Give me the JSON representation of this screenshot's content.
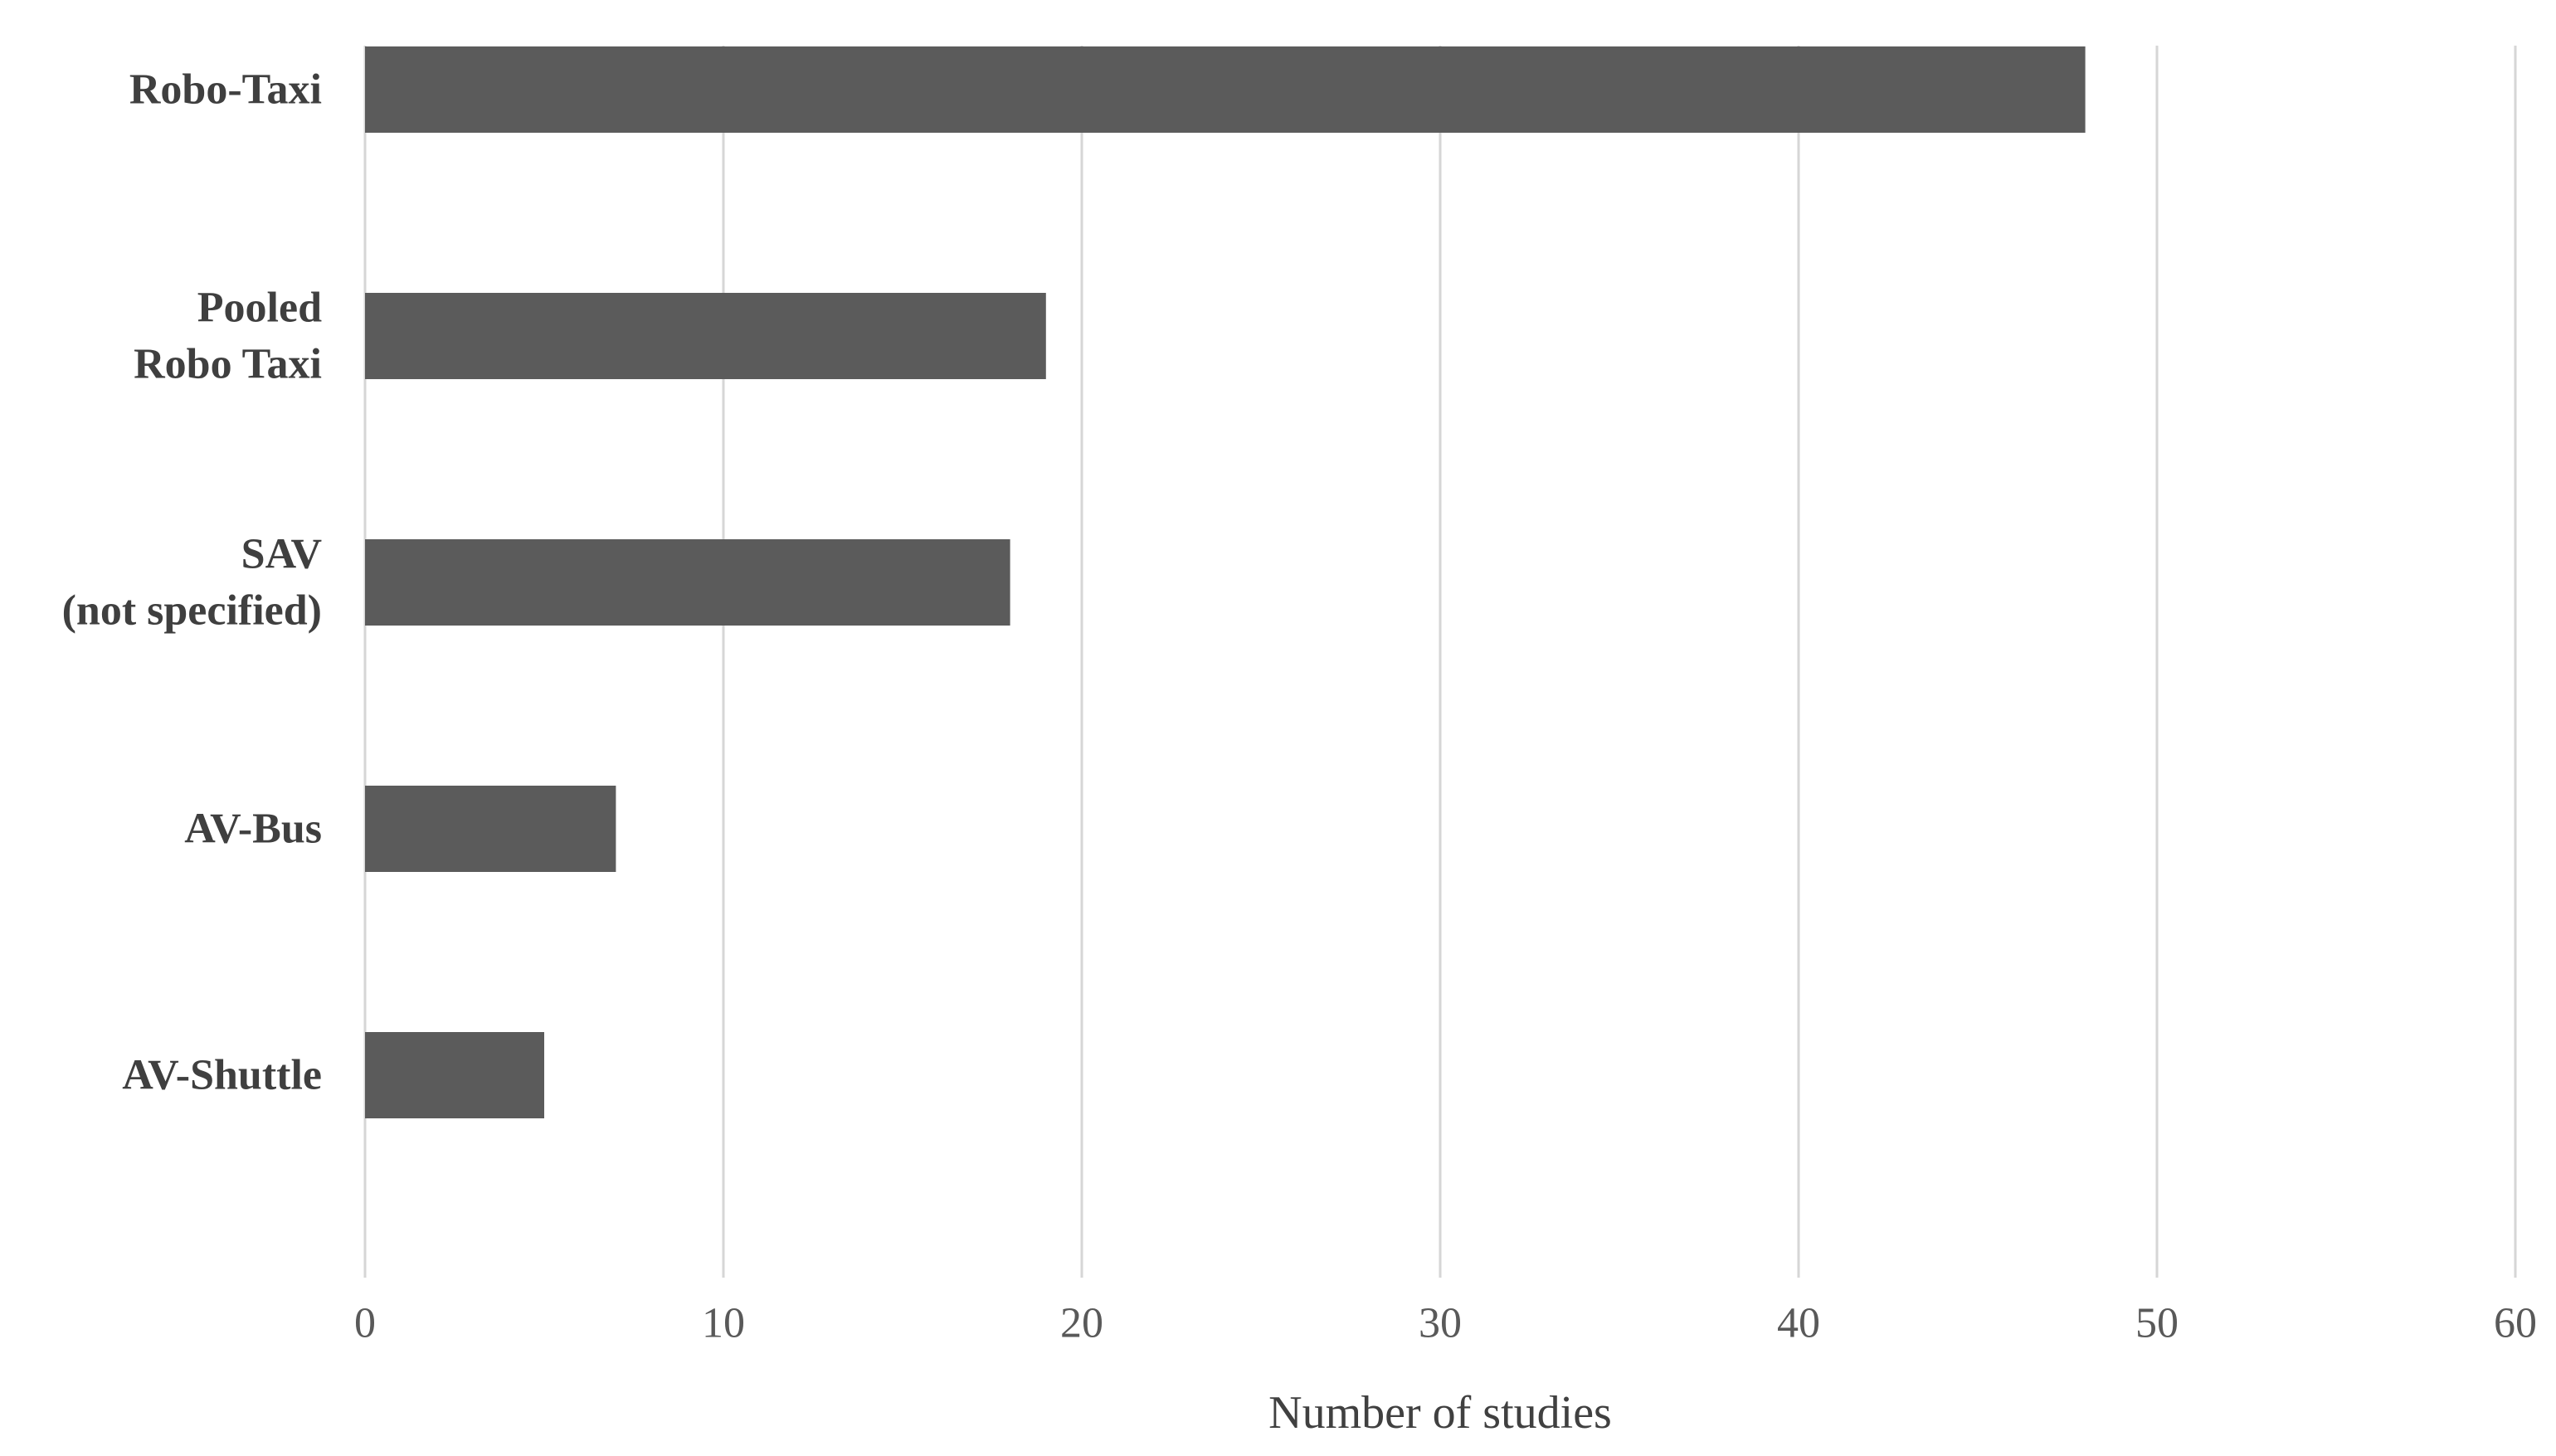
{
  "chart_data": {
    "type": "bar",
    "orientation": "horizontal",
    "categories": [
      [
        "Robo-Taxi"
      ],
      [
        "Pooled",
        "Robo Taxi"
      ],
      [
        "SAV",
        "(not specified)"
      ],
      [
        "AV-Bus"
      ],
      [
        "AV-Shuttle"
      ]
    ],
    "values": [
      48,
      19,
      18,
      7,
      5
    ],
    "xlabel": "Number of studies",
    "ylabel": "",
    "xlim": [
      0,
      60
    ],
    "xticks": [
      "0",
      "10",
      "20",
      "30",
      "40",
      "50",
      "60"
    ],
    "grid": "vertical",
    "legend": "none",
    "colors": {
      "bar": "#5b5b5b",
      "grid": "#d6d6d6",
      "tick_label": "#595959",
      "category_label": "#3f3f3f",
      "axis_title": "#404040"
    }
  }
}
